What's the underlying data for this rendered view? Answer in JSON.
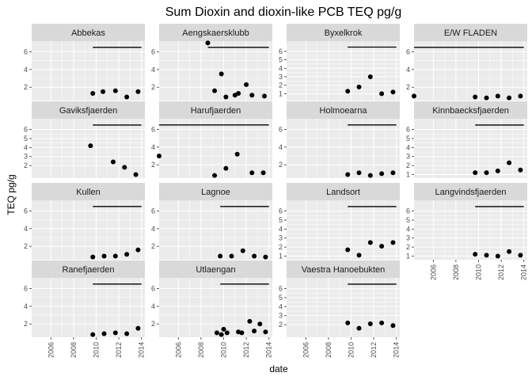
{
  "chart_data": {
    "type": "scatter",
    "title": "Sum Dioxin and dioxin-like PCB TEQ pg/g",
    "xlabel": "date",
    "ylabel": "TEQ pg/g",
    "xlim": [
      2004.3,
      2014.3
    ],
    "x_ticks": [
      2006,
      2008,
      2010,
      2012,
      2014
    ],
    "x_tick_labels": [
      "2006",
      "2008",
      "2010",
      "2012",
      "2014"
    ],
    "grid": true,
    "colors": {
      "panel": "#ebebeb",
      "strip": "#d9d9d9",
      "grid": "#ffffff",
      "point": "#000000"
    },
    "facet_columns": 4,
    "panels": [
      {
        "name": "Abbekas",
        "ylim": [
          0.5,
          7.2
        ],
        "yticks": [
          2,
          4,
          6
        ],
        "line": {
          "x": [
            2009.7,
            2014.0
          ],
          "y": 6.5
        },
        "points": [
          [
            2009.7,
            1.3
          ],
          [
            2010.6,
            1.5
          ],
          [
            2011.7,
            1.6
          ],
          [
            2012.7,
            0.9
          ],
          [
            2013.7,
            1.5
          ]
        ]
      },
      {
        "name": "Aengskaersklubb",
        "ylim": [
          0.5,
          7.2
        ],
        "yticks": [
          2,
          4,
          6
        ],
        "line": {
          "x": [
            2008.6,
            2014.0
          ],
          "y": 6.5
        },
        "points": [
          [
            2008.6,
            7.0
          ],
          [
            2009.2,
            1.6
          ],
          [
            2009.8,
            3.5
          ],
          [
            2010.2,
            0.9
          ],
          [
            2011.0,
            1.1
          ],
          [
            2011.3,
            1.3
          ],
          [
            2012.0,
            2.3
          ],
          [
            2012.5,
            1.1
          ],
          [
            2013.6,
            1.0
          ]
        ]
      },
      {
        "name": "Byxelkrok",
        "ylim": [
          0.2,
          7.2
        ],
        "yticks": [
          1,
          2,
          3,
          4,
          5,
          6
        ],
        "line": {
          "x": [
            2009.7,
            2014.0
          ],
          "y": 6.5
        },
        "points": [
          [
            2009.7,
            1.3
          ],
          [
            2010.7,
            1.8
          ],
          [
            2011.7,
            3.0
          ],
          [
            2012.7,
            1.0
          ],
          [
            2013.7,
            1.2
          ]
        ]
      },
      {
        "name": "E/W FLADEN",
        "ylim": [
          0.5,
          7.2
        ],
        "yticks": [
          2,
          4,
          6
        ],
        "line": {
          "x": [
            2004.3,
            2014.0
          ],
          "y": 6.5
        },
        "points": [
          [
            2004.3,
            1.0
          ],
          [
            2009.7,
            0.9
          ],
          [
            2010.7,
            0.8
          ],
          [
            2011.7,
            1.0
          ],
          [
            2012.7,
            0.8
          ],
          [
            2013.7,
            1.0
          ]
        ]
      },
      {
        "name": "Gaviksfjaerden",
        "ylim": [
          0.6,
          7.2
        ],
        "yticks": [
          2,
          3,
          4,
          5,
          6
        ],
        "line": {
          "x": [
            2009.7,
            2014.0
          ],
          "y": 6.5
        },
        "points": [
          [
            2009.5,
            4.2
          ],
          [
            2011.5,
            2.4
          ],
          [
            2012.5,
            1.8
          ],
          [
            2013.5,
            1.0
          ]
        ]
      },
      {
        "name": "Harufjaerden",
        "ylim": [
          0.5,
          7.2
        ],
        "yticks": [
          2,
          4,
          6
        ],
        "line": {
          "x": [
            2004.3,
            2014.0
          ],
          "y": 6.5
        },
        "points": [
          [
            2004.3,
            3.0
          ],
          [
            2009.2,
            0.8
          ],
          [
            2010.2,
            1.6
          ],
          [
            2011.2,
            3.2
          ],
          [
            2012.5,
            1.1
          ],
          [
            2013.5,
            1.1
          ]
        ]
      },
      {
        "name": "Holmoearna",
        "ylim": [
          0.5,
          7.2
        ],
        "yticks": [
          2,
          4,
          6
        ],
        "line": {
          "x": [
            2009.7,
            2014.0
          ],
          "y": 6.5
        },
        "points": [
          [
            2009.7,
            0.9
          ],
          [
            2010.7,
            1.1
          ],
          [
            2011.7,
            0.8
          ],
          [
            2012.7,
            1.0
          ],
          [
            2013.7,
            1.1
          ]
        ]
      },
      {
        "name": "Kinnbaecksfjaerden",
        "ylim": [
          0.6,
          7.2
        ],
        "yticks": [
          1,
          2,
          3,
          4,
          5,
          6
        ],
        "line": {
          "x": [
            2009.7,
            2014.0
          ],
          "y": 6.5
        },
        "points": [
          [
            2009.7,
            1.2
          ],
          [
            2010.7,
            1.2
          ],
          [
            2011.7,
            1.4
          ],
          [
            2012.7,
            2.3
          ],
          [
            2013.7,
            1.5
          ]
        ]
      },
      {
        "name": "Kullen",
        "ylim": [
          0.5,
          7.2
        ],
        "yticks": [
          2,
          4,
          6
        ],
        "line": {
          "x": [
            2009.7,
            2014.0
          ],
          "y": 6.5
        },
        "points": [
          [
            2009.7,
            0.8
          ],
          [
            2010.7,
            0.9
          ],
          [
            2011.7,
            0.9
          ],
          [
            2012.7,
            1.1
          ],
          [
            2013.7,
            1.6
          ]
        ]
      },
      {
        "name": "Lagnoe",
        "ylim": [
          0.5,
          7.2
        ],
        "yticks": [
          2,
          4,
          6
        ],
        "line": {
          "x": [
            2009.7,
            2014.0
          ],
          "y": 6.5
        },
        "points": [
          [
            2009.7,
            0.9
          ],
          [
            2010.7,
            0.9
          ],
          [
            2011.7,
            1.5
          ],
          [
            2012.7,
            0.9
          ],
          [
            2013.7,
            0.8
          ]
        ]
      },
      {
        "name": "Landsort",
        "ylim": [
          0.6,
          7.2
        ],
        "yticks": [
          1,
          2,
          3,
          4,
          5,
          6
        ],
        "line": {
          "x": [
            2009.7,
            2014.0
          ],
          "y": 6.5
        },
        "points": [
          [
            2009.7,
            1.7
          ],
          [
            2010.7,
            1.1
          ],
          [
            2011.7,
            2.5
          ],
          [
            2012.7,
            2.1
          ],
          [
            2013.7,
            2.5
          ]
        ]
      },
      {
        "name": "Langvindsfjaerden",
        "ylim": [
          0.6,
          7.2
        ],
        "yticks": [
          1,
          2,
          3,
          4,
          5,
          6
        ],
        "line": {
          "x": [
            2009.7,
            2014.0
          ],
          "y": 6.5
        },
        "points": [
          [
            2009.7,
            1.2
          ],
          [
            2010.7,
            1.1
          ],
          [
            2011.7,
            1.0
          ],
          [
            2012.7,
            1.5
          ],
          [
            2013.7,
            1.1
          ]
        ]
      },
      {
        "name": "Ranefjaerden",
        "ylim": [
          0.5,
          7.2
        ],
        "yticks": [
          2,
          4,
          6
        ],
        "line": {
          "x": [
            2009.7,
            2014.0
          ],
          "y": 6.5
        },
        "points": [
          [
            2009.7,
            0.8
          ],
          [
            2010.7,
            0.9
          ],
          [
            2011.7,
            1.0
          ],
          [
            2012.7,
            0.9
          ],
          [
            2013.7,
            1.5
          ]
        ]
      },
      {
        "name": "Utlaengan",
        "ylim": [
          0.5,
          7.2
        ],
        "yticks": [
          2,
          4,
          6
        ],
        "line": {
          "x": [
            2009.7,
            2014.0
          ],
          "y": 6.5
        },
        "points": [
          [
            2009.4,
            1.0
          ],
          [
            2009.8,
            0.8
          ],
          [
            2010.0,
            1.4
          ],
          [
            2010.3,
            1.0
          ],
          [
            2011.3,
            1.1
          ],
          [
            2011.6,
            1.0
          ],
          [
            2012.3,
            2.3
          ],
          [
            2012.7,
            1.2
          ],
          [
            2013.2,
            2.0
          ],
          [
            2013.7,
            1.1
          ]
        ]
      },
      {
        "name": "Vaestra Hanoebukten",
        "ylim": [
          0.6,
          7.2
        ],
        "yticks": [
          2,
          3,
          4,
          5,
          6
        ],
        "line": {
          "x": [
            2009.7,
            2014.0
          ],
          "y": 6.5
        },
        "points": [
          [
            2009.7,
            2.2
          ],
          [
            2010.7,
            1.6
          ],
          [
            2011.7,
            2.1
          ],
          [
            2012.7,
            2.2
          ],
          [
            2013.7,
            1.9
          ]
        ]
      }
    ]
  }
}
